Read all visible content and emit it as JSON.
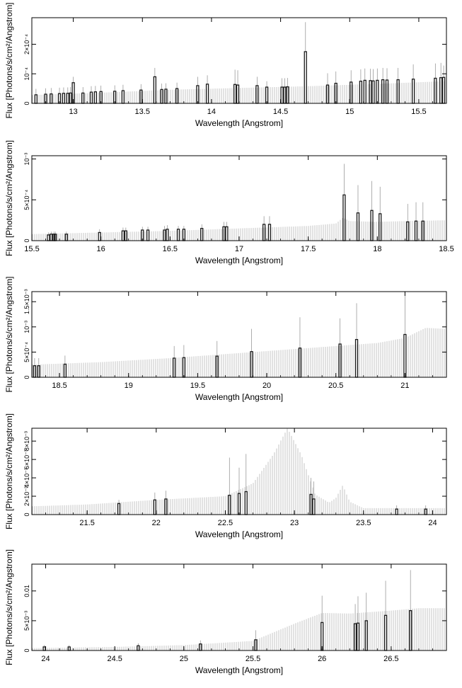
{
  "figure": {
    "title": "",
    "type": "spectrum panels"
  },
  "chart_data": [
    {
      "type": "bar",
      "xlabel": "Wavelength [Angstrom]",
      "ylabel": "Flux [Photons/s/cm²/Angstrom]",
      "xlim": [
        12.7,
        15.7
      ],
      "ylim": [
        0,
        0.00029
      ],
      "xticks": [
        13,
        13.5,
        14,
        14.5,
        15,
        15.5
      ],
      "yticks": [
        0,
        0.0001,
        0.0002
      ],
      "ytick_labels": [
        "0",
        "10⁻⁴",
        "2×10⁻⁴"
      ],
      "model": {
        "x": [
          12.7,
          13.2,
          13.7,
          14.2,
          14.7,
          15.2,
          15.7
        ],
        "y": [
          2.8e-05,
          3.6e-05,
          4.6e-05,
          5.2e-05,
          5.8e-05,
          6.6e-05,
          7.5e-05
        ]
      },
      "data": {
        "x": [
          12.73,
          12.8,
          12.84,
          12.9,
          12.93,
          12.96,
          12.98,
          13.0,
          13.07,
          13.13,
          13.16,
          13.2,
          13.3,
          13.36,
          13.49,
          13.59,
          13.64,
          13.67,
          13.75,
          13.9,
          13.97,
          14.17,
          14.19,
          14.33,
          14.4,
          14.51,
          14.53,
          14.55,
          14.68,
          14.84,
          14.9,
          15.01,
          15.08,
          15.11,
          15.15,
          15.17,
          15.2,
          15.24,
          15.27,
          15.35,
          15.46,
          15.62,
          15.66,
          15.68
        ],
        "y": [
          2.9e-05,
          3.1e-05,
          3.2e-05,
          3.3e-05,
          3.4e-05,
          3.4e-05,
          3.5e-05,
          7e-05,
          3.5e-05,
          3.8e-05,
          3.9e-05,
          4e-05,
          4.1e-05,
          4.3e-05,
          4.5e-05,
          9e-05,
          4.7e-05,
          4.8e-05,
          5e-05,
          6e-05,
          6.5e-05,
          6.4e-05,
          6.2e-05,
          6e-05,
          5.5e-05,
          5.5e-05,
          5.5e-05,
          5.6e-05,
          0.000175,
          6.2e-05,
          6.8e-05,
          7.2e-05,
          7.5e-05,
          7.8e-05,
          7.7e-05,
          7.6e-05,
          7.8e-05,
          8e-05,
          7.9e-05,
          8e-05,
          8.2e-05,
          8.5e-05,
          8.7e-05,
          8.8e-05
        ],
        "err": [
          2e-05,
          2e-05,
          2e-05,
          2e-05,
          2e-05,
          2e-05,
          2e-05,
          2e-05,
          2e-05,
          2e-05,
          2e-05,
          2e-05,
          2e-05,
          2e-05,
          2e-05,
          3e-05,
          2e-05,
          2e-05,
          2e-05,
          3e-05,
          3e-05,
          5e-05,
          5e-05,
          3e-05,
          2e-05,
          3e-05,
          3e-05,
          3e-05,
          0.0001,
          4e-05,
          4e-05,
          4e-05,
          4e-05,
          4e-05,
          4e-05,
          4e-05,
          4e-05,
          4e-05,
          4e-05,
          4e-05,
          5e-05,
          5e-05,
          5e-05,
          4e-05
        ]
      }
    },
    {
      "type": "bar",
      "xlabel": "Wavelength [Angstrom]",
      "ylabel": "Flux [Photons/s/cm²/Angstrom]",
      "xlim": [
        15.5,
        18.5
      ],
      "ylim": [
        0,
        0.00104
      ],
      "xticks": [
        15.5,
        16,
        16.5,
        17,
        17.5,
        18,
        18.5
      ],
      "yticks": [
        0,
        0.0005,
        0.001
      ],
      "ytick_labels": [
        "0",
        "5×10⁻⁴",
        "10⁻³"
      ],
      "model": {
        "x": [
          15.5,
          16.0,
          16.5,
          17.0,
          17.5,
          17.7,
          17.75,
          17.8,
          18.0,
          18.2,
          18.5
        ],
        "y": [
          8e-05,
          0.0001,
          0.00012,
          0.00015,
          0.00018,
          0.00021,
          0.00028,
          0.00024,
          0.00023,
          0.00024,
          0.00025
        ]
      },
      "data": {
        "x": [
          15.62,
          15.64,
          15.66,
          15.67,
          15.75,
          15.99,
          16.16,
          16.18,
          16.3,
          16.34,
          16.46,
          16.48,
          16.56,
          16.6,
          16.73,
          16.89,
          16.91,
          17.18,
          17.22,
          17.76,
          17.86,
          17.96,
          18.02,
          18.22,
          18.28,
          18.33
        ],
        "y": [
          7e-05,
          8e-05,
          8e-05,
          8e-05,
          8e-05,
          0.0001,
          0.00012,
          0.00012,
          0.00013,
          0.00013,
          0.00013,
          0.00014,
          0.00014,
          0.00014,
          0.00015,
          0.00017,
          0.00017,
          0.0002,
          0.0002,
          0.00056,
          0.00034,
          0.00037,
          0.00033,
          0.00023,
          0.00024,
          0.00024
        ],
        "err": [
          3e-05,
          3e-05,
          3e-05,
          3e-05,
          3e-05,
          4e-05,
          4e-05,
          4e-05,
          4e-05,
          4e-05,
          5e-05,
          5e-05,
          4e-05,
          4e-05,
          5e-05,
          6e-05,
          6e-05,
          0.0001,
          0.0001,
          0.00038,
          0.00034,
          0.00036,
          0.00033,
          0.00022,
          0.00023,
          0.00023
        ]
      }
    },
    {
      "type": "bar",
      "xlabel": "Wavelength [Angstrom]",
      "ylabel": "Flux [Photons/s/cm²/Angstrom]",
      "xlim": [
        18.3,
        21.3
      ],
      "ylim": [
        0,
        0.0017
      ],
      "xticks": [
        18.5,
        19,
        19.5,
        20,
        20.5,
        21
      ],
      "yticks": [
        0,
        0.0005,
        0.001,
        0.0015
      ],
      "ytick_labels": [
        "0",
        "5×10⁻⁴",
        "10⁻³",
        "1.5×10⁻³"
      ],
      "model": {
        "x": [
          18.3,
          18.8,
          19.3,
          19.8,
          20.3,
          20.8,
          21.0,
          21.15,
          21.3
        ],
        "y": [
          0.00025,
          0.0003,
          0.00038,
          0.00048,
          0.00058,
          0.00068,
          0.00078,
          0.00098,
          0.00096
        ]
      },
      "data": {
        "x": [
          18.32,
          18.35,
          18.54,
          19.33,
          19.4,
          19.64,
          19.89,
          20.24,
          20.53,
          20.65,
          21.0
        ],
        "y": [
          0.00023,
          0.00023,
          0.00026,
          0.00038,
          0.00039,
          0.00042,
          0.00051,
          0.00058,
          0.00066,
          0.00075,
          0.00085
        ],
        "err": [
          0.00015,
          0.00015,
          0.00017,
          0.00024,
          0.00025,
          0.0003,
          0.00045,
          0.00061,
          0.00051,
          0.00072,
          0.0009
        ]
      }
    },
    {
      "type": "bar",
      "xlabel": "Wavelength [Angstrom]",
      "ylabel": "Flux [Photons/s/cm²/Angstrom]",
      "xlim": [
        21.1,
        24.1
      ],
      "ylim": [
        0,
        0.0094
      ],
      "xticks": [
        21.5,
        22,
        22.5,
        23,
        23.5,
        24
      ],
      "yticks": [
        0,
        0.002,
        0.004,
        0.006,
        0.008
      ],
      "ytick_labels": [
        "0",
        "2×10⁻³",
        "4×10⁻³",
        "6×10⁻³",
        "8×10⁻³"
      ],
      "model": {
        "x": [
          21.1,
          21.5,
          22.0,
          22.5,
          22.7,
          22.85,
          22.95,
          23.05,
          23.15,
          23.25,
          23.3,
          23.35,
          23.4,
          23.5,
          24.1
        ],
        "y": [
          0.0009,
          0.0011,
          0.0016,
          0.002,
          0.0034,
          0.0066,
          0.0094,
          0.0065,
          0.0022,
          0.0013,
          0.0018,
          0.0032,
          0.0014,
          0.0007,
          0.0007
        ]
      },
      "data": {
        "x": [
          21.73,
          21.99,
          22.07,
          22.53,
          22.6,
          22.65,
          23.12,
          23.14,
          23.74,
          23.95
        ],
        "y": [
          0.0012,
          0.0016,
          0.0017,
          0.0021,
          0.0023,
          0.0025,
          0.0022,
          0.0017,
          0.0006,
          0.0006
        ],
        "err": [
          0.0004,
          0.0008,
          0.0009,
          0.0041,
          0.0028,
          0.0041,
          0.0018,
          0.0019,
          0.0004,
          0.0004
        ]
      }
    },
    {
      "type": "bar",
      "xlabel": "Wavelength [Angstrom]",
      "ylabel": "Flux [Photons/s/cm²/Angstrom]",
      "xlim": [
        23.9,
        26.9
      ],
      "ylim": [
        0,
        0.0145
      ],
      "xticks": [
        24,
        24.5,
        25,
        25.5,
        26,
        26.5
      ],
      "yticks": [
        0,
        0.005,
        0.01
      ],
      "ytick_labels": [
        "0",
        "5×10⁻³",
        "0.01"
      ],
      "model": {
        "x": [
          23.9,
          24.5,
          25.0,
          25.5,
          25.8,
          26.0,
          26.2,
          26.5,
          26.7,
          26.9
        ],
        "y": [
          0.0004,
          0.0006,
          0.0009,
          0.0016,
          0.0045,
          0.0063,
          0.0062,
          0.0067,
          0.0071,
          0.0071
        ]
      },
      "data": {
        "x": [
          23.99,
          24.17,
          24.67,
          25.12,
          25.52,
          26.0,
          26.24,
          26.26,
          26.32,
          26.46,
          26.64
        ],
        "y": [
          0.0006,
          0.0006,
          0.0008,
          0.0011,
          0.0018,
          0.0047,
          0.0045,
          0.0046,
          0.005,
          0.0059,
          0.0067
        ],
        "err": [
          0.0003,
          0.0003,
          0.0004,
          0.0006,
          0.0016,
          0.0045,
          0.0033,
          0.0045,
          0.0047,
          0.0058,
          0.0068
        ]
      }
    }
  ],
  "colors": {
    "model": "#c4c4c4",
    "data": "#1a1a1a",
    "axes": "#000000"
  }
}
